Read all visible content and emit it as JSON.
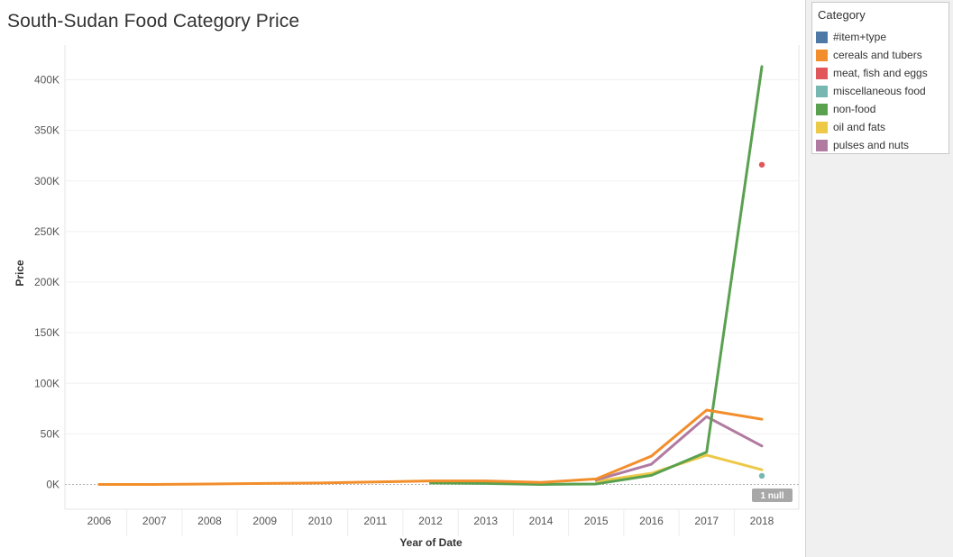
{
  "chart_data": {
    "type": "line",
    "title": "South-Sudan Food Category Price",
    "xlabel": "Year of Date",
    "ylabel": "Price",
    "x": [
      2006,
      2007,
      2008,
      2009,
      2010,
      2011,
      2012,
      2013,
      2014,
      2015,
      2016,
      2017,
      2018
    ],
    "ylim": [
      -22000,
      430000
    ],
    "yticks": [
      0,
      50000,
      100000,
      150000,
      200000,
      250000,
      300000,
      350000,
      400000
    ],
    "ytick_labels": [
      "0K",
      "50K",
      "100K",
      "150K",
      "200K",
      "250K",
      "300K",
      "350K",
      "400K"
    ],
    "grid": true,
    "legend_title": "Category",
    "legend_position": "right",
    "null_indicator": "1 null",
    "series": [
      {
        "name": "#item+type",
        "color": "#4e79a7",
        "values": [
          null,
          null,
          null,
          null,
          null,
          null,
          null,
          null,
          null,
          null,
          null,
          null,
          null
        ]
      },
      {
        "name": "cereals and tubers",
        "color": "#f28e2b",
        "values": [
          0,
          0,
          500,
          1000,
          1500,
          2500,
          3500,
          3500,
          2000,
          5500,
          28000,
          73500,
          64500
        ]
      },
      {
        "name": "meat, fish and eggs",
        "color": "#e15759",
        "values": [
          null,
          null,
          null,
          null,
          null,
          null,
          null,
          null,
          null,
          null,
          null,
          null,
          316000
        ]
      },
      {
        "name": "miscellaneous food",
        "color": "#76b7b2",
        "values": [
          null,
          null,
          null,
          null,
          null,
          null,
          null,
          null,
          null,
          null,
          null,
          null,
          8500
        ]
      },
      {
        "name": "non-food",
        "color": "#59a14f",
        "values": [
          null,
          null,
          null,
          null,
          null,
          null,
          1500,
          1000,
          0,
          500,
          9000,
          32000,
          413000
        ]
      },
      {
        "name": "oil and fats",
        "color": "#edc948",
        "values": [
          null,
          null,
          null,
          null,
          null,
          null,
          null,
          null,
          null,
          3000,
          11000,
          29000,
          14500
        ]
      },
      {
        "name": "pulses and nuts",
        "color": "#b07aa1",
        "values": [
          null,
          null,
          null,
          null,
          null,
          null,
          null,
          null,
          null,
          4500,
          20000,
          67000,
          38000
        ]
      }
    ]
  }
}
